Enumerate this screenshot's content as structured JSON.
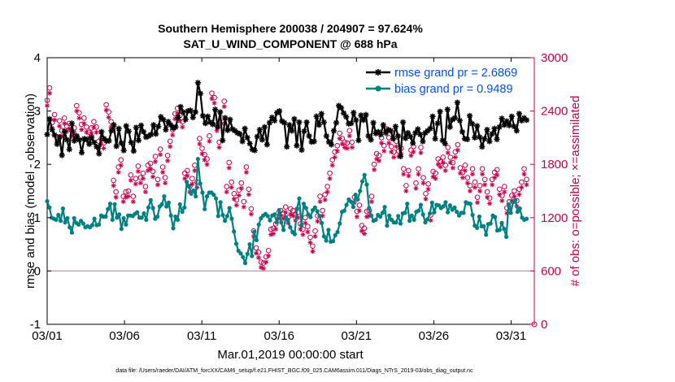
{
  "chart_data": {
    "type": "line",
    "title_line1": "Southern Hemisphere 200038 / 204907 = 97.624%",
    "title_line2": "SAT_U_WIND_COMPONENT @ 688 hPa",
    "xlabel": "Mar.01,2019 00:00:00 start",
    "ylabel": "rmse and bias (model - observation)",
    "y2label": "# of obs: o=possible; ×=assimilated",
    "footnote": "data file: /Users/raeder/DAI/ATM_forcXX/CAM6_setup/f.e21.FHIST_BGC.f09_025.CAM6assim.011/Diags_NTrS_2019-03/obs_diag_output.nc",
    "xlim": [
      0,
      31.5
    ],
    "ylim": [
      -1,
      4
    ],
    "y2lim": [
      0,
      3000
    ],
    "xticks": [
      0,
      5,
      10,
      15,
      20,
      25,
      30
    ],
    "xtick_labels": [
      "03/01",
      "03/06",
      "03/11",
      "03/16",
      "03/21",
      "03/26",
      "03/31"
    ],
    "yticks": [
      -1,
      0,
      1,
      2,
      3,
      4
    ],
    "ytick_labels": [
      "-1",
      "0",
      "1",
      "2",
      "3",
      "4"
    ],
    "y2ticks": [
      0,
      600,
      1200,
      1800,
      2400,
      3000
    ],
    "y2tick_labels": [
      "0",
      "600",
      "1200",
      "1800",
      "2400",
      "3000"
    ],
    "zero_line": 0,
    "series": [
      {
        "name": "rmse",
        "legend": "rmse grand pr = 2.6869",
        "color": "#000000",
        "marker": "asterisk",
        "values": [
          2.56,
          2.85,
          2.65,
          2.55,
          2.38,
          2.51,
          2.17,
          2.62,
          2.46,
          2.28,
          2.77,
          2.44,
          2.53,
          2.46,
          2.22,
          2.48,
          2.46,
          2.38,
          2.51,
          2.41,
          2.33,
          2.2,
          2.61,
          2.48,
          2.44,
          2.44,
          2.63,
          2.74,
          2.34,
          2.67,
          2.4,
          2.26,
          2.72,
          2.62,
          2.41,
          2.25,
          2.69,
          2.45,
          2.73,
          2.61,
          2.51,
          2.53,
          2.56,
          2.74,
          2.57,
          2.71,
          2.89,
          2.84,
          2.65,
          2.8,
          2.74,
          2.68,
          2.7,
          2.88,
          3.08,
          2.98,
          2.84,
          3.0,
          3.01,
          2.88,
          2.98,
          3.53,
          3.33,
          2.91,
          2.77,
          2.9,
          2.79,
          2.75,
          3.03,
          2.7,
          2.98,
          2.45,
          2.87,
          2.64,
          2.84,
          2.66,
          2.63,
          2.59,
          2.57,
          2.43,
          2.67,
          2.5,
          2.39,
          2.28,
          2.26,
          2.52,
          2.65,
          2.46,
          2.7,
          2.37,
          2.78,
          2.88,
          2.82,
          2.97,
          3.0,
          2.81,
          2.78,
          2.33,
          2.74,
          2.63,
          2.85,
          2.35,
          2.79,
          2.27,
          2.62,
          2.79,
          2.53,
          2.42,
          2.43,
          2.9,
          2.74,
          2.95,
          2.79,
          2.53,
          2.42,
          2.37,
          2.63,
          2.78,
          3.1,
          3.06,
          2.96,
          2.89,
          2.76,
          2.77,
          2.97,
          2.83,
          2.45,
          2.92,
          2.83,
          2.93,
          2.53,
          2.46,
          2.78,
          2.58,
          2.61,
          2.56,
          2.74,
          2.6,
          2.65,
          2.63,
          2.48,
          2.71,
          2.53,
          2.15,
          2.79,
          2.49,
          2.59,
          2.52,
          2.4,
          2.59,
          2.66,
          2.56,
          2.43,
          2.59,
          2.63,
          2.67,
          2.9,
          2.48,
          2.77,
          2.99,
          2.45,
          2.39,
          3.03,
          2.7,
          2.84,
          2.87,
          3.16,
          2.82,
          2.61,
          2.48,
          2.47,
          2.91,
          2.76,
          2.5,
          2.72,
          2.51,
          2.33,
          2.48,
          2.65,
          2.43,
          2.57,
          2.67,
          2.47,
          2.7,
          2.86,
          2.74,
          2.81,
          2.73,
          2.9,
          2.71,
          2.63,
          2.95,
          2.82,
          2.87,
          2.83
        ]
      },
      {
        "name": "bias",
        "legend": "bias grand pr = 0.9489",
        "color": "#008080",
        "marker": "circle",
        "values": [
          1.31,
          1.19,
          1.0,
          0.98,
          0.96,
          1.05,
          0.94,
          1.17,
          0.91,
          0.99,
          0.82,
          0.72,
          0.99,
          0.9,
          0.87,
          0.94,
          0.89,
          0.82,
          0.84,
          0.82,
          0.86,
          0.98,
          0.86,
          0.87,
          1.04,
          1.02,
          1.02,
          1.16,
          1.26,
          0.96,
          1.25,
          1.0,
          1.06,
          0.79,
          0.99,
          0.87,
          1.04,
          1.04,
          1.03,
          1.07,
          1.1,
          1.0,
          1.0,
          1.08,
          0.96,
          1.19,
          1.33,
          1.18,
          0.98,
          1.02,
          1.21,
          1.25,
          1.4,
          1.21,
          1.28,
          1.04,
          0.8,
          1.02,
          0.96,
          1.25,
          1.11,
          1.19,
          1.67,
          1.59,
          1.45,
          1.51,
          1.4,
          2.1,
          1.64,
          1.47,
          1.16,
          1.4,
          1.47,
          1.47,
          1.43,
          1.36,
          1.03,
          1.29,
          1.05,
          0.94,
          1.03,
          1.18,
          0.98,
          0.74,
          0.51,
          0.38,
          0.33,
          0.26,
          0.15,
          0.32,
          0.5,
          0.28,
          0.73,
          0.58,
          0.87,
          0.99,
          1.04,
          1.07,
          1.03,
          0.95,
          1.04,
          1.06,
          0.91,
          1.14,
          0.91,
          0.77,
          1.01,
          0.96,
          0.82,
          0.73,
          0.69,
          1.17,
          1.36,
          0.86,
          1.26,
          1.18,
          1.06,
          1.01,
          1.14,
          1.19,
          1.12,
          1.03,
          0.9,
          0.65,
          0.57,
          0.77,
          0.55,
          0.56,
          0.67,
          0.73,
          0.89,
          1.11,
          1.13,
          1.24,
          1.34,
          1.3,
          1.2,
          1.43,
          1.34,
          1.5,
          1.68,
          1.8,
          1.62,
          1.18,
          1.04,
          0.94,
          0.96,
          1.05,
          1.02,
          1.09,
          1.2,
          0.85,
          1.04,
          0.96,
          0.91,
          0.91,
          1.03,
          0.89,
          1.08,
          1.09,
          1.26,
          0.94,
          1.04,
          0.96,
          1.11,
          1.13,
          1.24,
          1.06,
          0.91,
          0.97,
          1.08,
          1.28,
          1.1,
          1.24,
          1.23,
          1.18,
          1.21,
          1.29,
          1.1,
          1.23,
          1.15,
          1.19,
          1.11,
          1.04,
          1.09,
          1.09,
          1.29,
          1.27,
          1.26,
          1.05,
          0.85,
          0.81,
          1.02,
          0.84,
          0.84,
          0.68,
          0.88,
          0.89,
          1.04,
          1.01,
          0.76,
          0.77,
          0.9,
          0.79,
          0.64,
          1.25,
          1.09,
          1.29,
          1.33,
          1.11,
          1.17,
          1.0,
          0.96,
          0.98
        ]
      },
      {
        "name": "obs possible",
        "color": "#c8004b",
        "marker": "circle-open",
        "axis": "right",
        "values": [
          2520,
          2660,
          2270,
          2360,
          2110,
          2290,
          2180,
          2320,
          2230,
          2260,
          2180,
          2210,
          2460,
          2380,
          2250,
          2320,
          2220,
          2160,
          2210,
          2280,
          2220,
          2060,
          2090,
          2040,
          2470,
          2390,
          2280,
          1620,
          1490,
          1770,
          1850,
          1440,
          1490,
          1500,
          1680,
          1440,
          1640,
          1780,
          1650,
          1700,
          1550,
          1790,
          1810,
          1720,
          1890,
          1630,
          1970,
          1770,
          1650,
          1900,
          2060,
          2190,
          2370,
          2430,
          2350,
          2280,
          1700,
          1730,
          1550,
          1640,
          1790,
          1600,
          2090,
          1980,
          1910,
          1860,
          2120,
          2600,
          2550,
          2240,
          2050,
          2320,
          2510,
          1550,
          1820,
          1600,
          1470,
          1400,
          1510,
          1590,
          1380,
          1770,
          1520,
          1300,
          1050,
          860,
          810,
          700,
          690,
          760,
          830,
          1070,
          1080,
          1130,
          1250,
          1280,
          1250,
          1320,
          1200,
          1300,
          1280,
          1230,
          1260,
          1130,
          1070,
          1200,
          1100,
          980,
          880,
          1050,
          1220,
          1440,
          1280,
          1460,
          1550,
          1700,
          1850,
          1940,
          2010,
          2150,
          2090,
          2050,
          2040,
          2180,
          2050,
          1430,
          1270,
          1340,
          1110,
          1080,
          1270,
          1280,
          1440,
          1800,
          1920,
          1900,
          2100,
          2010,
          2200,
          2100,
          2000,
          1940,
          2060,
          1950,
          1980,
          1750,
          1560,
          1730,
          1960,
          2000,
          1590,
          1750,
          1990,
          1650,
          1470,
          1580,
          1230,
          1720,
          1700,
          1860,
          1830,
          1880,
          1790,
          1990,
          1880,
          1820,
          1940,
          2020,
          1760,
          1710,
          1790,
          1650,
          1560,
          1750,
          1600,
          1430,
          1560,
          1750,
          1630,
          1490,
          1420,
          1630,
          1710,
          1740,
          1520,
          1450,
          1550,
          1310,
          1380,
          1450,
          1500,
          1390,
          1520,
          1600,
          1750,
          1630
        ]
      },
      {
        "name": "obs assimilated",
        "color": "#c8004b",
        "marker": "asterisk",
        "axis": "right",
        "values": [
          2460,
          2600,
          2210,
          2300,
          2060,
          2230,
          2120,
          2260,
          2170,
          2200,
          2120,
          2160,
          2400,
          2320,
          2190,
          2260,
          2160,
          2100,
          2150,
          2220,
          2160,
          2000,
          2030,
          1980,
          2410,
          2330,
          2220,
          1560,
          1430,
          1710,
          1790,
          1380,
          1430,
          1440,
          1620,
          1380,
          1580,
          1720,
          1590,
          1640,
          1490,
          1730,
          1750,
          1660,
          1830,
          1570,
          1910,
          1710,
          1590,
          1840,
          2000,
          2130,
          2310,
          2370,
          2290,
          2220,
          1640,
          1670,
          1490,
          1580,
          1730,
          1540,
          2030,
          1920,
          1850,
          1800,
          2060,
          2540,
          2490,
          2180,
          1990,
          2260,
          2450,
          1490,
          1760,
          1540,
          1410,
          1340,
          1450,
          1530,
          1320,
          1710,
          1460,
          1240,
          990,
          800,
          750,
          640,
          630,
          700,
          770,
          1010,
          1020,
          1070,
          1190,
          1220,
          1190,
          1260,
          1140,
          1240,
          1220,
          1170,
          1200,
          1070,
          1010,
          1140,
          1040,
          920,
          820,
          990,
          1160,
          1380,
          1220,
          1400,
          1490,
          1640,
          1790,
          1880,
          1950,
          2090,
          2030,
          1990,
          1980,
          2120,
          1990,
          1370,
          1210,
          1280,
          1050,
          1020,
          1210,
          1220,
          1380,
          1740,
          1860,
          1840,
          2040,
          1950,
          2140,
          2040,
          1940,
          1880,
          2000,
          1890,
          1920,
          1690,
          1500,
          1670,
          1900,
          1940,
          1530,
          1690,
          1930,
          1590,
          1410,
          1520,
          1170,
          1660,
          1640,
          1800,
          1770,
          1820,
          1730,
          1930,
          1820,
          1760,
          1880,
          1960,
          1700,
          1650,
          1730,
          1590,
          1500,
          1690,
          1540,
          1370,
          1500,
          1690,
          1570,
          1430,
          1360,
          1570,
          1650,
          1680,
          1460,
          1390,
          1490,
          1250,
          1320,
          1390,
          1440,
          1330,
          1460,
          1540,
          1690,
          1570
        ]
      }
    ],
    "legend_position": "top-right"
  }
}
